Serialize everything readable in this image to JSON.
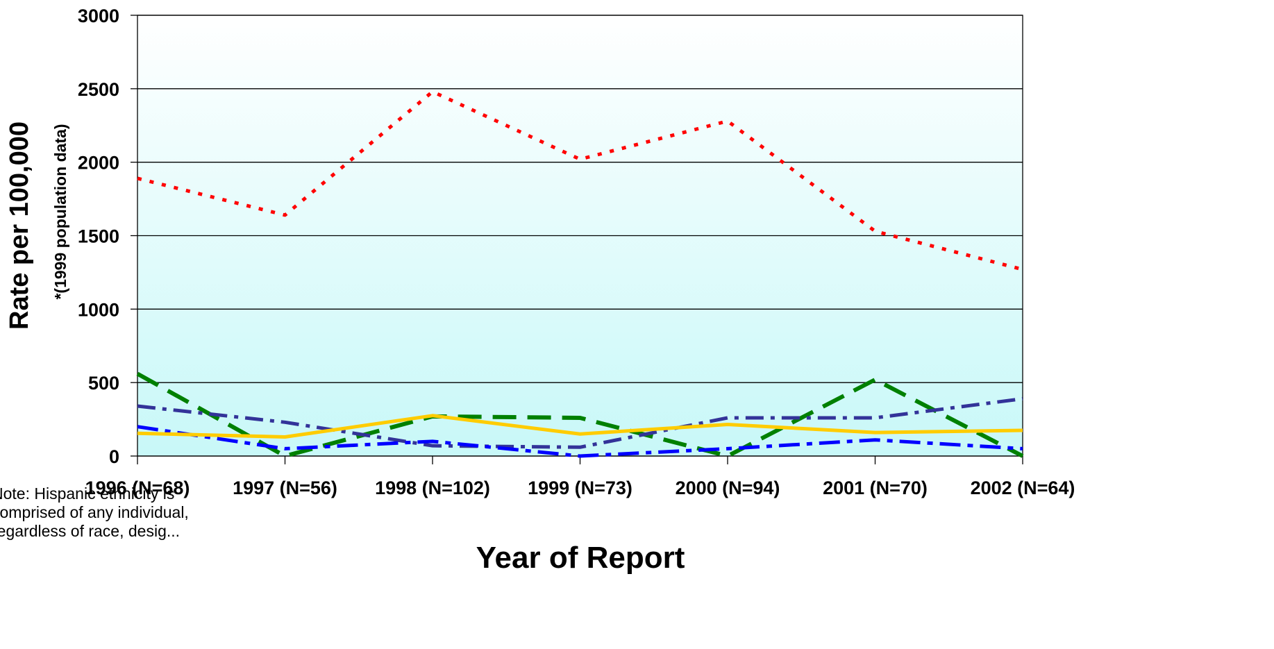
{
  "chart_data": {
    "type": "line",
    "categories": [
      "1996 (N=68)",
      "1997 (N=56)",
      "1998 (N=102)",
      "1999 (N=73)",
      "2000 (N=94)",
      "2001 (N=70)",
      "2002 (N=64)"
    ],
    "ylabel": "Rate per 100,000",
    "ylabel_sub": "*(1999 population data)",
    "xlabel": "Year of Report",
    "ylim": [
      0,
      3000
    ],
    "yticks": [
      0,
      500,
      1000,
      1500,
      2000,
      2500,
      3000
    ],
    "grid": true,
    "background_gradient": [
      "#ffffff",
      "#c8f8f8"
    ],
    "series": [
      {
        "color": "#ff0000",
        "dash": "6,12",
        "width": 5,
        "values": [
          1890,
          1640,
          2480,
          2020,
          2280,
          1530,
          1270
        ]
      },
      {
        "color": "#008000",
        "dash": "34,16",
        "width": 6,
        "values": [
          560,
          0,
          270,
          260,
          0,
          520,
          0
        ]
      },
      {
        "color": "#333399",
        "dash": "26,10,6,10",
        "width": 5,
        "values": [
          340,
          230,
          70,
          60,
          260,
          260,
          390
        ]
      },
      {
        "color": "#0000ff",
        "dash": "30,10,8,10",
        "width": 5,
        "values": [
          200,
          50,
          100,
          0,
          50,
          110,
          50
        ]
      },
      {
        "color": "#ffcc00",
        "dash": "",
        "width": 5,
        "values": [
          155,
          130,
          275,
          150,
          215,
          160,
          175
        ]
      }
    ]
  },
  "note": "Note: Hispanic ethnicity is\ncomprised of any individual,\nregardless of race, desig..."
}
